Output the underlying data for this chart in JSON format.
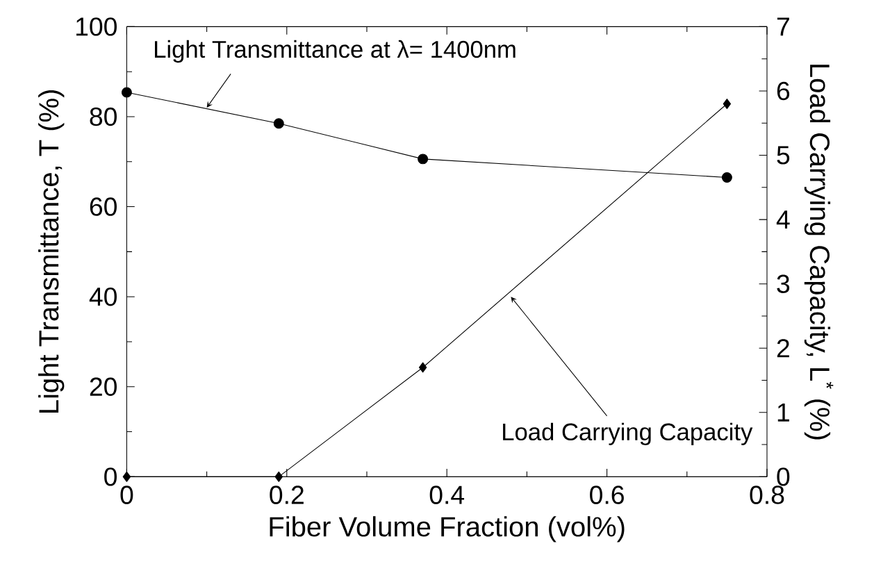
{
  "chart_data": {
    "type": "line",
    "xlabel": "Fiber Volume Fraction (vol%)",
    "ylabel": "Light Transmittance, T (%)",
    "y2label": "Load Carrying Capacity, L$^{*}$ (%)",
    "xlim": [
      0,
      0.8
    ],
    "xticks": [
      0,
      0.2,
      0.4,
      0.6,
      0.8
    ],
    "ylim": [
      0,
      100
    ],
    "yticks": [
      0,
      20,
      40,
      60,
      80,
      100
    ],
    "y2lim": [
      0,
      7
    ],
    "y2ticks": [
      0,
      1,
      2,
      3,
      4,
      5,
      6,
      7
    ],
    "grid": false,
    "line_style": "solid",
    "series": [
      {
        "color": "#000000",
        "marker": "circle",
        "x": [
          0,
          0.19,
          0.37,
          0.75
        ],
        "values": [
          85.4,
          78.5,
          70.6,
          66.5
        ]
      },
      {
        "color": "#000000",
        "marker": "diamond",
        "axis": "y2",
        "x": [
          0,
          0.19,
          0.37,
          0.75
        ],
        "values": [
          0,
          0,
          1.7,
          5.8
        ]
      }
    ],
    "annotations": [
      {
        "text": "Light Transmittance at λ= 1400nm",
        "x": 0.1,
        "y": 82
      },
      {
        "text": "Load Carrying Capacity",
        "x": 0.48,
        "y": 40
      }
    ]
  }
}
